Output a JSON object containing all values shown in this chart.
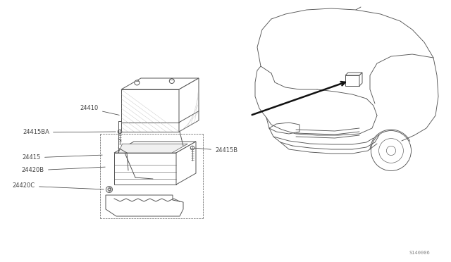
{
  "bg_color": "#ffffff",
  "lc": "#555555",
  "dc": "#222222",
  "fig_width": 6.4,
  "fig_height": 3.72,
  "dpi": 100,
  "watermark": "S140006",
  "label_fs": 6.0,
  "label_color": "#444444",
  "car_lw": 0.65,
  "part_lw": 0.7,
  "battery": {
    "bx": 1.72,
    "by": 1.85,
    "bw": 0.82,
    "bh": 0.6,
    "ox": 0.28,
    "oy": 0.16
  },
  "labels": {
    "24410": [
      1.42,
      2.18,
      1.72,
      2.05
    ],
    "24415BA": [
      0.72,
      1.82,
      1.58,
      1.82
    ],
    "24415B": [
      3.05,
      1.58,
      2.75,
      1.62
    ],
    "24415": [
      0.58,
      1.45,
      1.52,
      1.52
    ],
    "24420B": [
      0.65,
      1.28,
      1.6,
      1.35
    ],
    "24420C": [
      0.52,
      1.08,
      1.52,
      1.05
    ]
  }
}
